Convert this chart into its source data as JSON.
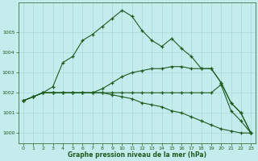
{
  "background_color": "#c5eced",
  "grid_color": "#a8d8d8",
  "line_color": "#1e5c1e",
  "ylim": [
    999.5,
    1006.5
  ],
  "xlim": [
    -0.5,
    23.5
  ],
  "ytick_vals": [
    1000,
    1001,
    1002,
    1003,
    1004,
    1005
  ],
  "xtick_vals": [
    0,
    1,
    2,
    3,
    4,
    5,
    6,
    7,
    8,
    9,
    10,
    11,
    12,
    13,
    14,
    15,
    16,
    17,
    18,
    19,
    20,
    21,
    22,
    23
  ],
  "xlabel": "Graphe pression niveau de la mer (hPa)",
  "hours": [
    0,
    1,
    2,
    3,
    4,
    5,
    6,
    7,
    8,
    9,
    10,
    11,
    12,
    13,
    14,
    15,
    16,
    17,
    18,
    19,
    20,
    21,
    22,
    23
  ],
  "s1": [
    1001.6,
    1001.8,
    1002.0,
    1002.3,
    1003.5,
    1003.8,
    1004.6,
    1004.9,
    1005.3,
    1005.7,
    1006.1,
    1005.8,
    1005.1,
    1004.6,
    1004.3,
    1004.7,
    1004.2,
    1003.8,
    1003.2,
    1003.2,
    1002.5,
    1001.5,
    1001.0,
    1000.0
  ],
  "s2": [
    1001.6,
    1001.8,
    1002.0,
    1002.0,
    1002.0,
    1002.0,
    1002.0,
    1002.0,
    1002.2,
    1002.5,
    1002.8,
    1003.0,
    1003.1,
    1003.2,
    1003.2,
    1003.3,
    1003.3,
    1003.2,
    1003.2,
    1003.2,
    1002.5,
    1001.5,
    1001.0,
    1000.0
  ],
  "s3": [
    1001.6,
    1001.8,
    1002.0,
    1002.0,
    1002.0,
    1002.0,
    1002.0,
    1002.0,
    1002.0,
    1002.0,
    1002.0,
    1002.0,
    1002.0,
    1002.0,
    1002.0,
    1002.0,
    1002.0,
    1002.0,
    1002.0,
    1002.0,
    1002.4,
    1001.1,
    1000.6,
    1000.0
  ],
  "s4": [
    1001.6,
    1001.8,
    1002.0,
    1002.0,
    1002.0,
    1002.0,
    1002.0,
    1002.0,
    1002.0,
    1001.9,
    1001.8,
    1001.7,
    1001.5,
    1001.4,
    1001.3,
    1001.1,
    1001.0,
    1000.8,
    1000.6,
    1000.4,
    1000.2,
    1000.1,
    1000.0,
    1000.0
  ]
}
